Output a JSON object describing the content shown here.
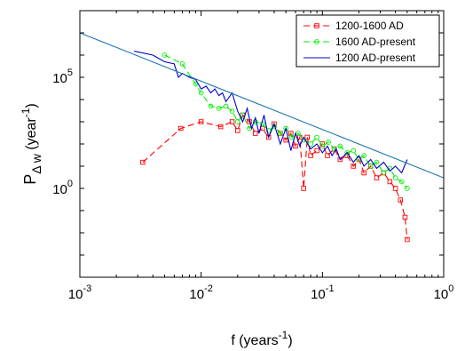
{
  "chart_data": {
    "type": "line",
    "title": "",
    "xlabel": {
      "base": "f (years",
      "sup": "-1",
      "end": ")"
    },
    "ylabel": {
      "base": "P",
      "sub": "Δ w",
      "mid": " (year",
      "sup": "-1",
      "end": ")"
    },
    "xscale": "log",
    "yscale": "log",
    "xlim": [
      0.001,
      1
    ],
    "ylim": [
      0.0001,
      100000000.0
    ],
    "x_ticks": [
      {
        "base": "10",
        "exp": "-3",
        "value": 0.001
      },
      {
        "base": "10",
        "exp": "-2",
        "value": 0.01
      },
      {
        "base": "10",
        "exp": "-1",
        "value": 0.1
      },
      {
        "base": "10",
        "exp": "0",
        "value": 1
      }
    ],
    "y_ticks": [
      {
        "base": "10",
        "exp": "0",
        "value": 1
      },
      {
        "base": "10",
        "exp": "5",
        "value": 100000
      }
    ],
    "grid": false,
    "legend": {
      "position": "top-right"
    },
    "series": [
      {
        "name": "1200-1600 AD",
        "color": "#ff0000",
        "line_style": "dashed",
        "marker": "square",
        "x": [
          0.0033,
          0.0068,
          0.01,
          0.0145,
          0.018,
          0.02,
          0.022,
          0.025,
          0.028,
          0.032,
          0.036,
          0.04,
          0.045,
          0.05,
          0.055,
          0.06,
          0.065,
          0.07,
          0.075,
          0.08,
          0.09,
          0.1,
          0.11,
          0.125,
          0.14,
          0.16,
          0.18,
          0.2,
          0.22,
          0.25,
          0.28,
          0.32,
          0.36,
          0.4,
          0.44,
          0.48,
          0.5
        ],
        "y": [
          15,
          500,
          1000,
          600,
          1000,
          400,
          2000,
          1000,
          300,
          500,
          200,
          800,
          300,
          150,
          300,
          80,
          200,
          1,
          200,
          30,
          50,
          100,
          30,
          60,
          20,
          30,
          10,
          20,
          5,
          10,
          3,
          5,
          2,
          1,
          0.3,
          0.05,
          0.005
        ]
      },
      {
        "name": "1600 AD-present",
        "color": "#00ee00",
        "line_style": "dashed",
        "marker": "circle",
        "x": [
          0.005,
          0.007,
          0.009,
          0.01,
          0.012,
          0.014,
          0.016,
          0.018,
          0.02,
          0.022,
          0.025,
          0.028,
          0.032,
          0.036,
          0.04,
          0.045,
          0.05,
          0.056,
          0.063,
          0.07,
          0.08,
          0.09,
          0.1,
          0.112,
          0.125,
          0.14,
          0.16,
          0.18,
          0.2,
          0.22,
          0.25,
          0.28,
          0.32,
          0.36,
          0.4,
          0.45,
          0.5
        ],
        "y": [
          1000000,
          400000,
          50000,
          20000,
          5000,
          4000,
          5000,
          3000,
          1000,
          2000,
          500,
          1000,
          800,
          400,
          600,
          300,
          500,
          200,
          300,
          150,
          100,
          200,
          80,
          120,
          60,
          80,
          40,
          50,
          20,
          30,
          10,
          15,
          5,
          8,
          3,
          2,
          1
        ]
      },
      {
        "name": "1200 AD-present",
        "color": "#0000cc",
        "line_style": "solid",
        "marker": "none",
        "x": [
          0.0028,
          0.004,
          0.005,
          0.006,
          0.0065,
          0.007,
          0.008,
          0.009,
          0.01,
          0.011,
          0.012,
          0.013,
          0.014,
          0.015,
          0.016,
          0.018,
          0.02,
          0.022,
          0.024,
          0.026,
          0.028,
          0.03,
          0.033,
          0.036,
          0.04,
          0.045,
          0.05,
          0.055,
          0.06,
          0.065,
          0.07,
          0.08,
          0.09,
          0.1,
          0.11,
          0.12,
          0.13,
          0.14,
          0.16,
          0.18,
          0.2,
          0.22,
          0.25,
          0.28,
          0.32,
          0.36,
          0.4,
          0.45,
          0.5
        ],
        "y": [
          1500000,
          1000000,
          500000,
          400000,
          100000,
          150000,
          100000,
          80000,
          30000,
          40000,
          20000,
          30000,
          15000,
          20000,
          8000,
          20000,
          3000,
          1000,
          4000,
          500,
          1500,
          300,
          2000,
          200,
          800,
          100,
          500,
          50,
          300,
          80,
          200,
          60,
          100,
          40,
          80,
          30,
          60,
          20,
          40,
          15,
          30,
          10,
          20,
          8,
          15,
          6,
          10,
          5,
          20
        ]
      },
      {
        "name": "",
        "color": "#1f77b4",
        "line_style": "solid",
        "marker": "none",
        "x": [
          0.001,
          1
        ],
        "y": [
          10000000,
          3
        ]
      }
    ]
  }
}
